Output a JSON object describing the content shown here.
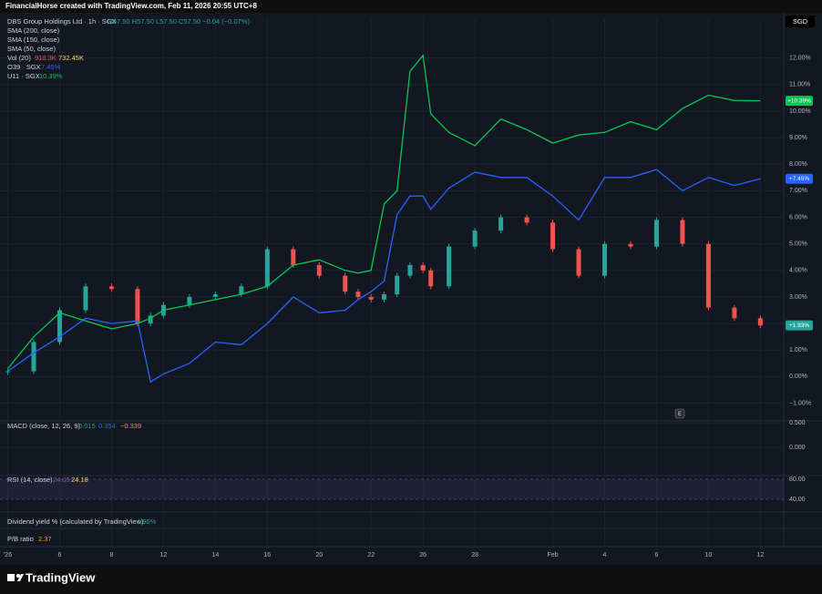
{
  "header": {
    "title": "FinancialHorse created with TradingView.com, Feb 11, 2026 20:55 UTC+8",
    "currency": "SGD"
  },
  "legend": {
    "symbol": "DBS Group Holdings Ltd · 1h · SGX",
    "ohlc": "O57.50 H57.50 L57.50 C57.50 −0.04 (−0.07%)",
    "sma200": "SMA (200, close)",
    "sma150": "SMA (150, close)",
    "sma50": "SMA (50, close)",
    "vol": "Vol (20)",
    "vol_value": "918.3K",
    "vol_ma": "732.45K",
    "o39": "O39 · SGX",
    "o39_value": "7.45%",
    "u11": "U11 · SGX",
    "u11_value": "10.39%",
    "earnings": "E"
  },
  "chart_data": {
    "type": "line",
    "x": [
      0,
      1,
      2,
      3,
      4,
      5,
      5.5,
      6,
      7,
      8,
      9,
      10,
      11,
      12,
      13,
      13.5,
      14,
      14.5,
      15,
      15.5,
      16,
      16.3,
      17,
      18,
      19,
      20,
      21,
      22,
      23,
      24,
      25,
      26,
      27,
      28,
      29
    ],
    "xlim": [
      -0.3,
      29.9
    ],
    "xticks": [
      {
        "value": 0,
        "label": "'26"
      },
      {
        "value": 2,
        "label": "6"
      },
      {
        "value": 4,
        "label": "8"
      },
      {
        "value": 6,
        "label": "12"
      },
      {
        "value": 8,
        "label": "14"
      },
      {
        "value": 10,
        "label": "16"
      },
      {
        "value": 12,
        "label": "20"
      },
      {
        "value": 14,
        "label": "22"
      },
      {
        "value": 16,
        "label": "26"
      },
      {
        "value": 18,
        "label": "28"
      },
      {
        "value": 21,
        "label": "Feb"
      },
      {
        "value": 23,
        "label": "4"
      },
      {
        "value": 25,
        "label": "6"
      },
      {
        "value": 27,
        "label": "10"
      },
      {
        "value": 29,
        "label": "12"
      }
    ],
    "ylim": [
      -1.6,
      13.5
    ],
    "yticks": [
      {
        "value": -1,
        "label": "−1.00%"
      },
      {
        "value": 0,
        "label": "0.00%"
      },
      {
        "value": 1,
        "label": "1.00%"
      },
      {
        "value": 2,
        "label": "2.00%"
      },
      {
        "value": 3,
        "label": "3.00%"
      },
      {
        "value": 4,
        "label": "4.00%"
      },
      {
        "value": 5,
        "label": "5.00%"
      },
      {
        "value": 6,
        "label": "6.00%"
      },
      {
        "value": 7,
        "label": "7.00%"
      },
      {
        "value": 8,
        "label": "8.00%"
      },
      {
        "value": 9,
        "label": "9.00%"
      },
      {
        "value": 10,
        "label": "10.00%"
      },
      {
        "value": 11,
        "label": "11.00%"
      },
      {
        "value": 12,
        "label": "12.00%"
      }
    ],
    "grid": true,
    "series": [
      {
        "name": "DBS Group Holdings Ltd",
        "draw": "candle",
        "color": "#26a69a",
        "down_color": "#ef5350",
        "badge": "+1.93%",
        "values": [
          0.2,
          1.3,
          2.5,
          3.4,
          3.3,
          2.0,
          2.3,
          2.7,
          3.0,
          3.1,
          3.4,
          4.8,
          4.2,
          3.8,
          3.2,
          3.0,
          2.9,
          3.1,
          3.8,
          4.2,
          4.0,
          3.4,
          4.9,
          5.5,
          6.0,
          5.8,
          4.8,
          3.8,
          5.0,
          4.9,
          5.9,
          5.0,
          2.6,
          2.2,
          1.93
        ]
      },
      {
        "name": "O39",
        "draw": "line",
        "color": "#2962ff",
        "badge": "+7.45%",
        "values": [
          0.2,
          0.9,
          1.5,
          2.2,
          2.0,
          2.1,
          -0.2,
          0.1,
          0.5,
          1.3,
          1.2,
          2.0,
          3.0,
          2.4,
          2.5,
          2.9,
          3.2,
          3.6,
          6.1,
          6.8,
          6.8,
          6.3,
          7.1,
          7.7,
          7.5,
          7.5,
          6.8,
          5.9,
          7.5,
          7.5,
          7.8,
          7.0,
          7.5,
          7.2,
          7.45
        ]
      },
      {
        "name": "U11",
        "draw": "line",
        "color": "#00c853",
        "badge": "+10.39%",
        "values": [
          0.3,
          1.5,
          2.4,
          2.1,
          1.8,
          2.0,
          2.2,
          2.5,
          2.7,
          2.9,
          3.1,
          3.4,
          4.2,
          4.4,
          4.0,
          3.9,
          4.0,
          6.5,
          7.0,
          11.5,
          12.1,
          9.9,
          9.2,
          8.7,
          9.7,
          9.3,
          8.8,
          9.1,
          9.2,
          9.6,
          9.3,
          10.1,
          10.6,
          10.4,
          10.39
        ]
      }
    ]
  },
  "panes": {
    "macd": {
      "title": "MACD (close, 12, 26, 9)",
      "v1": "0.015",
      "v2": "0.354",
      "v3": "−0.339",
      "ylim": [
        -0.57,
        0.54
      ],
      "ticks": [
        {
          "value": 0.5,
          "label": "0.500"
        },
        {
          "value": 0,
          "label": "0.000"
        }
      ]
    },
    "rsi": {
      "title": "RSI (14, close)",
      "v1": "24.09",
      "v2": "24.18",
      "ylim": [
        14.5,
        87.3
      ],
      "ticks": [
        {
          "value": 80,
          "label": "80.00"
        },
        {
          "value": 40,
          "label": "40.00"
        }
      ]
    },
    "dividend": {
      "title": "Dividend yield % (calculated by TradingView)",
      "value": "4.96%"
    },
    "pb": {
      "title": "P/B ratio",
      "value": "2.37"
    }
  },
  "footer": {
    "brand": "TradingView"
  }
}
